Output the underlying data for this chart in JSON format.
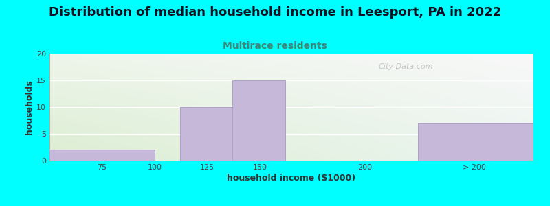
{
  "title": "Distribution of median household income in Leesport, PA in 2022",
  "subtitle": "Multirace residents",
  "xlabel": "household income ($1000)",
  "ylabel": "households",
  "background_color": "#00FFFF",
  "bar_color": "#c5b8d8",
  "bar_edge_color": "#b0a0c8",
  "values": [
    2,
    0,
    10,
    15,
    0,
    7
  ],
  "bar_lefts": [
    50,
    100,
    112,
    137,
    162,
    225
  ],
  "bar_rights": [
    100,
    112,
    137,
    162,
    225,
    280
  ],
  "xlim": [
    50,
    280
  ],
  "ylim": [
    0,
    20
  ],
  "yticks": [
    0,
    5,
    10,
    15,
    20
  ],
  "xtick_positions": [
    75,
    100,
    125,
    150,
    200,
    252
  ],
  "xtick_labels": [
    "75",
    "100",
    "125",
    "150",
    "200",
    "> 200"
  ],
  "title_fontsize": 13,
  "subtitle_fontsize": 10,
  "subtitle_color": "#3a8a7a",
  "axis_label_fontsize": 9,
  "tick_fontsize": 8,
  "title_color": "#111122",
  "watermark": "City-Data.com"
}
